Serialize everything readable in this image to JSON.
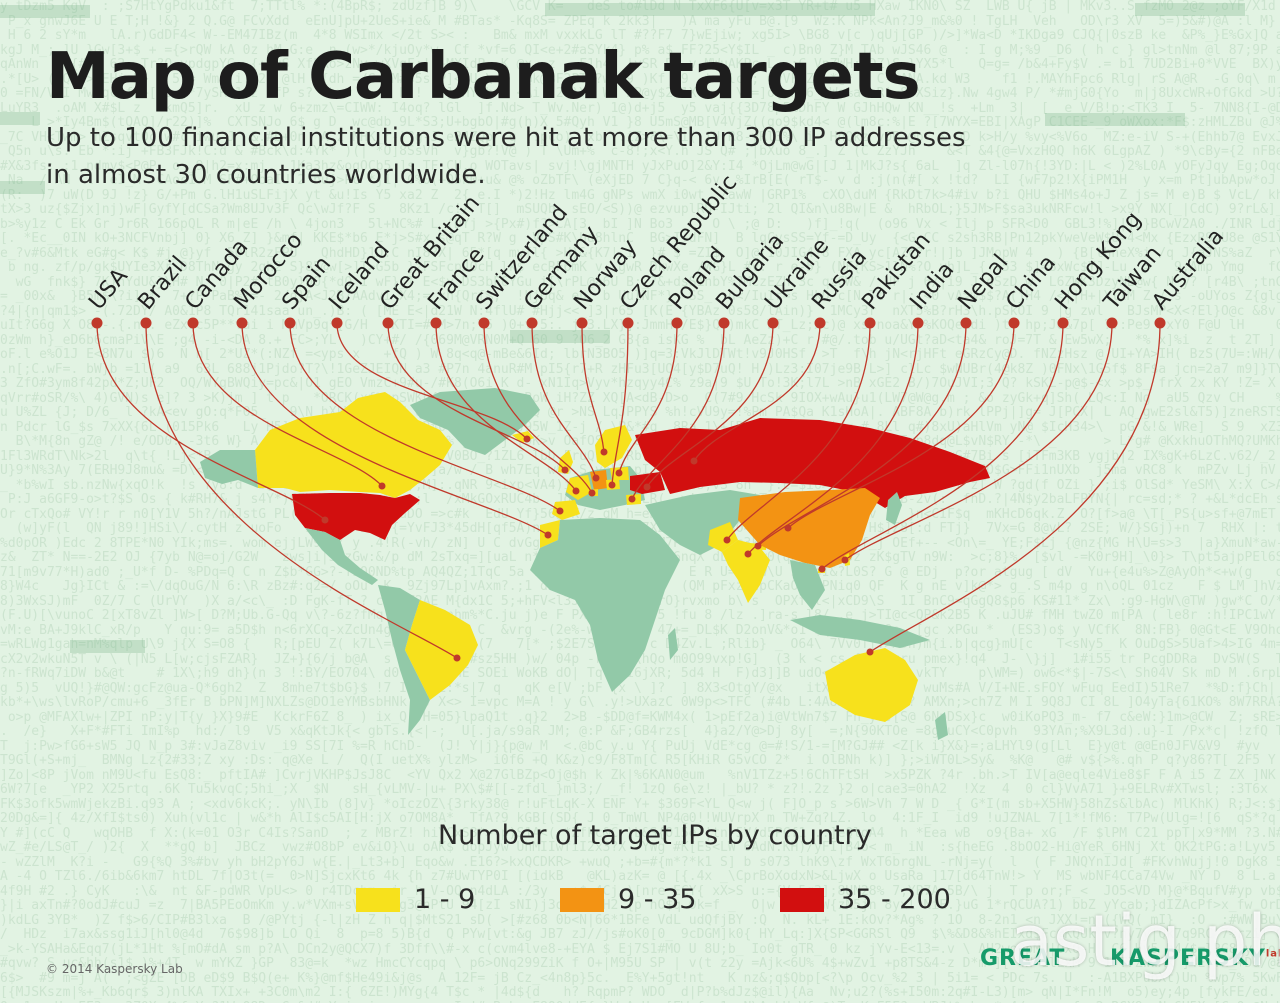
{
  "header": {
    "title": "Map of Carbanak targets",
    "subtitle_line1": "Up to 100 financial institutions were hit at more than 300 IP addresses",
    "subtitle_line2": "in almost 30 countries worldwide."
  },
  "countries": [
    {
      "name": "USA",
      "category": "35 - 200"
    },
    {
      "name": "Brazil",
      "category": "1 - 9"
    },
    {
      "name": "Canada",
      "category": "1 - 9"
    },
    {
      "name": "Morocco",
      "category": "1 - 9"
    },
    {
      "name": "Spain",
      "category": "1 - 9"
    },
    {
      "name": "Iceland",
      "category": "1 - 9"
    },
    {
      "name": "Great Britain",
      "category": "1 - 9"
    },
    {
      "name": "France",
      "category": "1 - 9"
    },
    {
      "name": "Switzerland",
      "category": "1 - 9"
    },
    {
      "name": "Germany",
      "category": "9 - 35"
    },
    {
      "name": "Norway",
      "category": "1 - 9"
    },
    {
      "name": "Czech Republic",
      "category": "1 - 9"
    },
    {
      "name": "Poland",
      "category": "1 - 9"
    },
    {
      "name": "Bulgaria",
      "category": "1 - 9"
    },
    {
      "name": "Ukraine",
      "category": "35 - 200"
    },
    {
      "name": "Russia",
      "category": "35 - 200"
    },
    {
      "name": "Pakistan",
      "category": "1 - 9"
    },
    {
      "name": "India",
      "category": "1 - 9"
    },
    {
      "name": "Nepal",
      "category": "1 - 9"
    },
    {
      "name": "China",
      "category": "9 - 35"
    },
    {
      "name": "Hong Kong",
      "category": "1 - 9"
    },
    {
      "name": "Taiwan",
      "category": "1 - 9"
    },
    {
      "name": "Australia",
      "category": "1 - 9"
    }
  ],
  "legend": {
    "title": "Number of target IPs by country",
    "items": [
      {
        "label": "1 - 9",
        "color": "#f7e11c"
      },
      {
        "label": "9 - 35",
        "color": "#f39313"
      },
      {
        "label": "35 - 200",
        "color": "#d20f0f"
      }
    ]
  },
  "colors": {
    "land_default": "#92c9a8",
    "leader_line": "#c0392b",
    "marker": "#c0392b",
    "background": "#e2f3e3"
  },
  "footer": {
    "copyright": "© 2014 Kaspersky Lab",
    "brand_great": "GREAT",
    "brand_kaspersky": "KASPERSKY",
    "brand_lab": "lab",
    "watermark": "astig.ph"
  }
}
